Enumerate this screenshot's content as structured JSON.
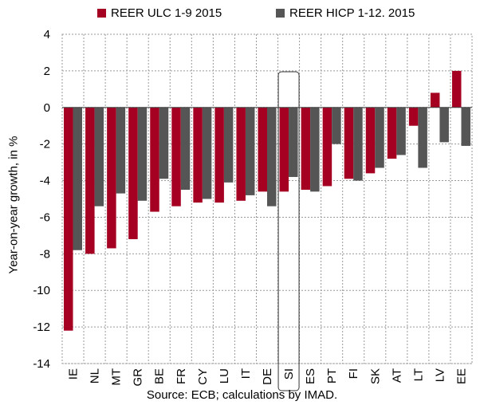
{
  "chart_data": {
    "type": "bar",
    "categories": [
      "IE",
      "NL",
      "MT",
      "GR",
      "BE",
      "FR",
      "CY",
      "LU",
      "IT",
      "DE",
      "SI",
      "ES",
      "PT",
      "FI",
      "SK",
      "AT",
      "LT",
      "LV",
      "EE"
    ],
    "series": [
      {
        "name": "REER ULC 1-9 2015",
        "color": "#A50021",
        "values": [
          -12.2,
          -8.0,
          -7.7,
          -7.2,
          -5.7,
          -5.4,
          -5.2,
          -5.2,
          -5.1,
          -4.6,
          -4.6,
          -4.5,
          -4.3,
          -3.9,
          -3.6,
          -2.8,
          -1.0,
          0.8,
          2.0
        ]
      },
      {
        "name": "REER HICP 1-12. 2015",
        "color": "#555555",
        "values": [
          -7.8,
          -5.4,
          -4.7,
          -5.1,
          -3.9,
          -4.5,
          -5.0,
          -4.1,
          -4.8,
          -5.4,
          -3.8,
          -4.6,
          -2.0,
          -4.0,
          -3.3,
          -2.6,
          -3.3,
          -1.9,
          -2.1
        ]
      }
    ],
    "ylabel": "Year-on-year growth, in %",
    "ylim": [
      -14,
      4
    ],
    "yticks": [
      -14,
      -12,
      -10,
      -8,
      -6,
      -4,
      -2,
      0,
      2,
      4
    ],
    "highlighted_category": "SI",
    "grid": true,
    "legend_position": "top",
    "source": "Source: ECB; calculations by IMAD."
  }
}
